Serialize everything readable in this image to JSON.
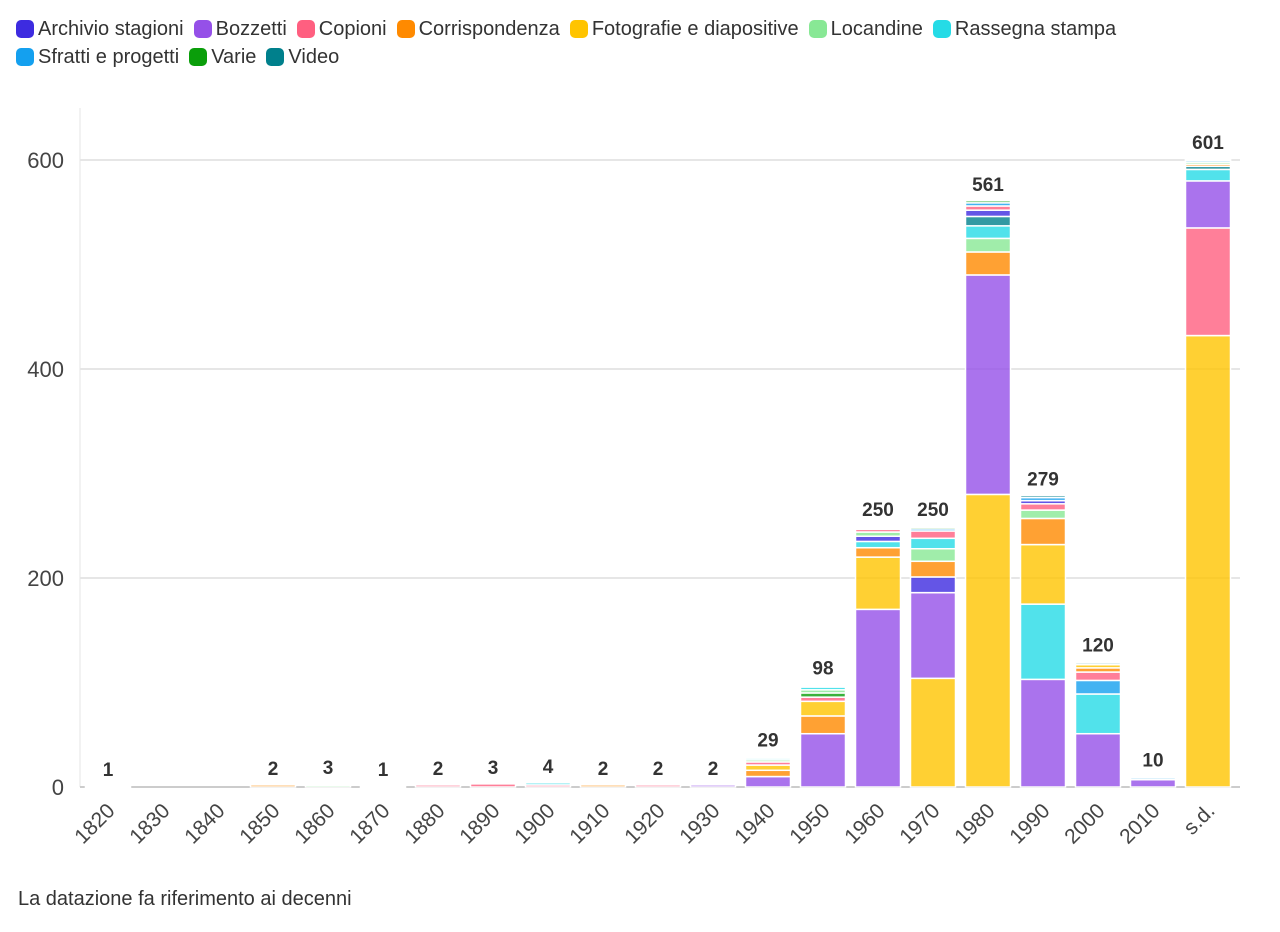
{
  "chart_data": {
    "type": "bar",
    "stacked": true,
    "title": "",
    "xlabel": "",
    "ylabel": "",
    "ylim": [
      0,
      650
    ],
    "yticks": [
      0,
      200,
      400,
      600
    ],
    "grid": true,
    "legend_position": "top",
    "categories": [
      "1820",
      "1830",
      "1840",
      "1850",
      "1860",
      "1870",
      "1880",
      "1890",
      "1900",
      "1910",
      "1920",
      "1930",
      "1940",
      "1950",
      "1960",
      "1970",
      "1980",
      "1990",
      "2000",
      "2010",
      "s.d."
    ],
    "totals": [
      1,
      null,
      null,
      2,
      3,
      1,
      2,
      3,
      4,
      2,
      2,
      2,
      29,
      98,
      250,
      250,
      561,
      279,
      120,
      10,
      601
    ],
    "series": [
      {
        "name": "Archivio stagioni",
        "color": "#3d2be0",
        "values": [
          0,
          0,
          0,
          0,
          0,
          0,
          0,
          0,
          0,
          0,
          0,
          0,
          1,
          1,
          5,
          15,
          6,
          3,
          0,
          0,
          0
        ]
      },
      {
        "name": "Bozzetti",
        "color": "#9550e8",
        "values": [
          0,
          0,
          0,
          0,
          0,
          0,
          0,
          0,
          0,
          0,
          0,
          2,
          10,
          51,
          170,
          82,
          210,
          103,
          51,
          7,
          45
        ]
      },
      {
        "name": "Copioni",
        "color": "#ff5f80",
        "values": [
          1,
          0,
          0,
          0,
          0,
          1,
          2,
          3,
          2,
          0,
          2,
          0,
          3,
          4,
          3,
          7,
          4,
          6,
          8,
          0,
          103
        ]
      },
      {
        "name": "Corrispondenza",
        "color": "#ff8a00",
        "values": [
          0,
          0,
          0,
          2,
          0,
          0,
          0,
          0,
          0,
          2,
          0,
          0,
          6,
          17,
          9,
          15,
          22,
          25,
          4,
          0,
          2
        ]
      },
      {
        "name": "Fotografie e diapositive",
        "color": "#ffc400",
        "values": [
          0,
          0,
          0,
          0,
          1,
          0,
          0,
          0,
          0,
          0,
          0,
          0,
          5,
          14,
          50,
          104,
          280,
          57,
          3,
          0,
          432
        ]
      },
      {
        "name": "Locandine",
        "color": "#88e895",
        "values": [
          0,
          0,
          0,
          0,
          2,
          0,
          0,
          0,
          0,
          0,
          0,
          0,
          2,
          3,
          4,
          12,
          13,
          8,
          1,
          0,
          2
        ]
      },
      {
        "name": "Rassegna stampa",
        "color": "#25dbe6",
        "values": [
          0,
          0,
          0,
          0,
          0,
          0,
          0,
          0,
          2,
          0,
          0,
          0,
          2,
          3,
          6,
          10,
          12,
          72,
          38,
          1,
          11
        ]
      },
      {
        "name": "Sfratti e progetti",
        "color": "#14a0ef",
        "values": [
          0,
          0,
          0,
          0,
          0,
          0,
          0,
          0,
          0,
          0,
          0,
          0,
          0,
          1,
          1,
          2,
          3,
          3,
          13,
          2,
          2
        ]
      },
      {
        "name": "Varie",
        "color": "#0a9e0a",
        "values": [
          0,
          0,
          0,
          0,
          0,
          0,
          0,
          0,
          0,
          0,
          0,
          0,
          0,
          4,
          1,
          2,
          2,
          0,
          0,
          0,
          1
        ]
      },
      {
        "name": "Video",
        "color": "#00808c",
        "values": [
          0,
          0,
          0,
          0,
          0,
          0,
          0,
          0,
          0,
          0,
          0,
          0,
          0,
          0,
          1,
          1,
          9,
          2,
          2,
          0,
          3
        ]
      }
    ]
  },
  "footnote": "La datazione fa riferimento ai decenni"
}
